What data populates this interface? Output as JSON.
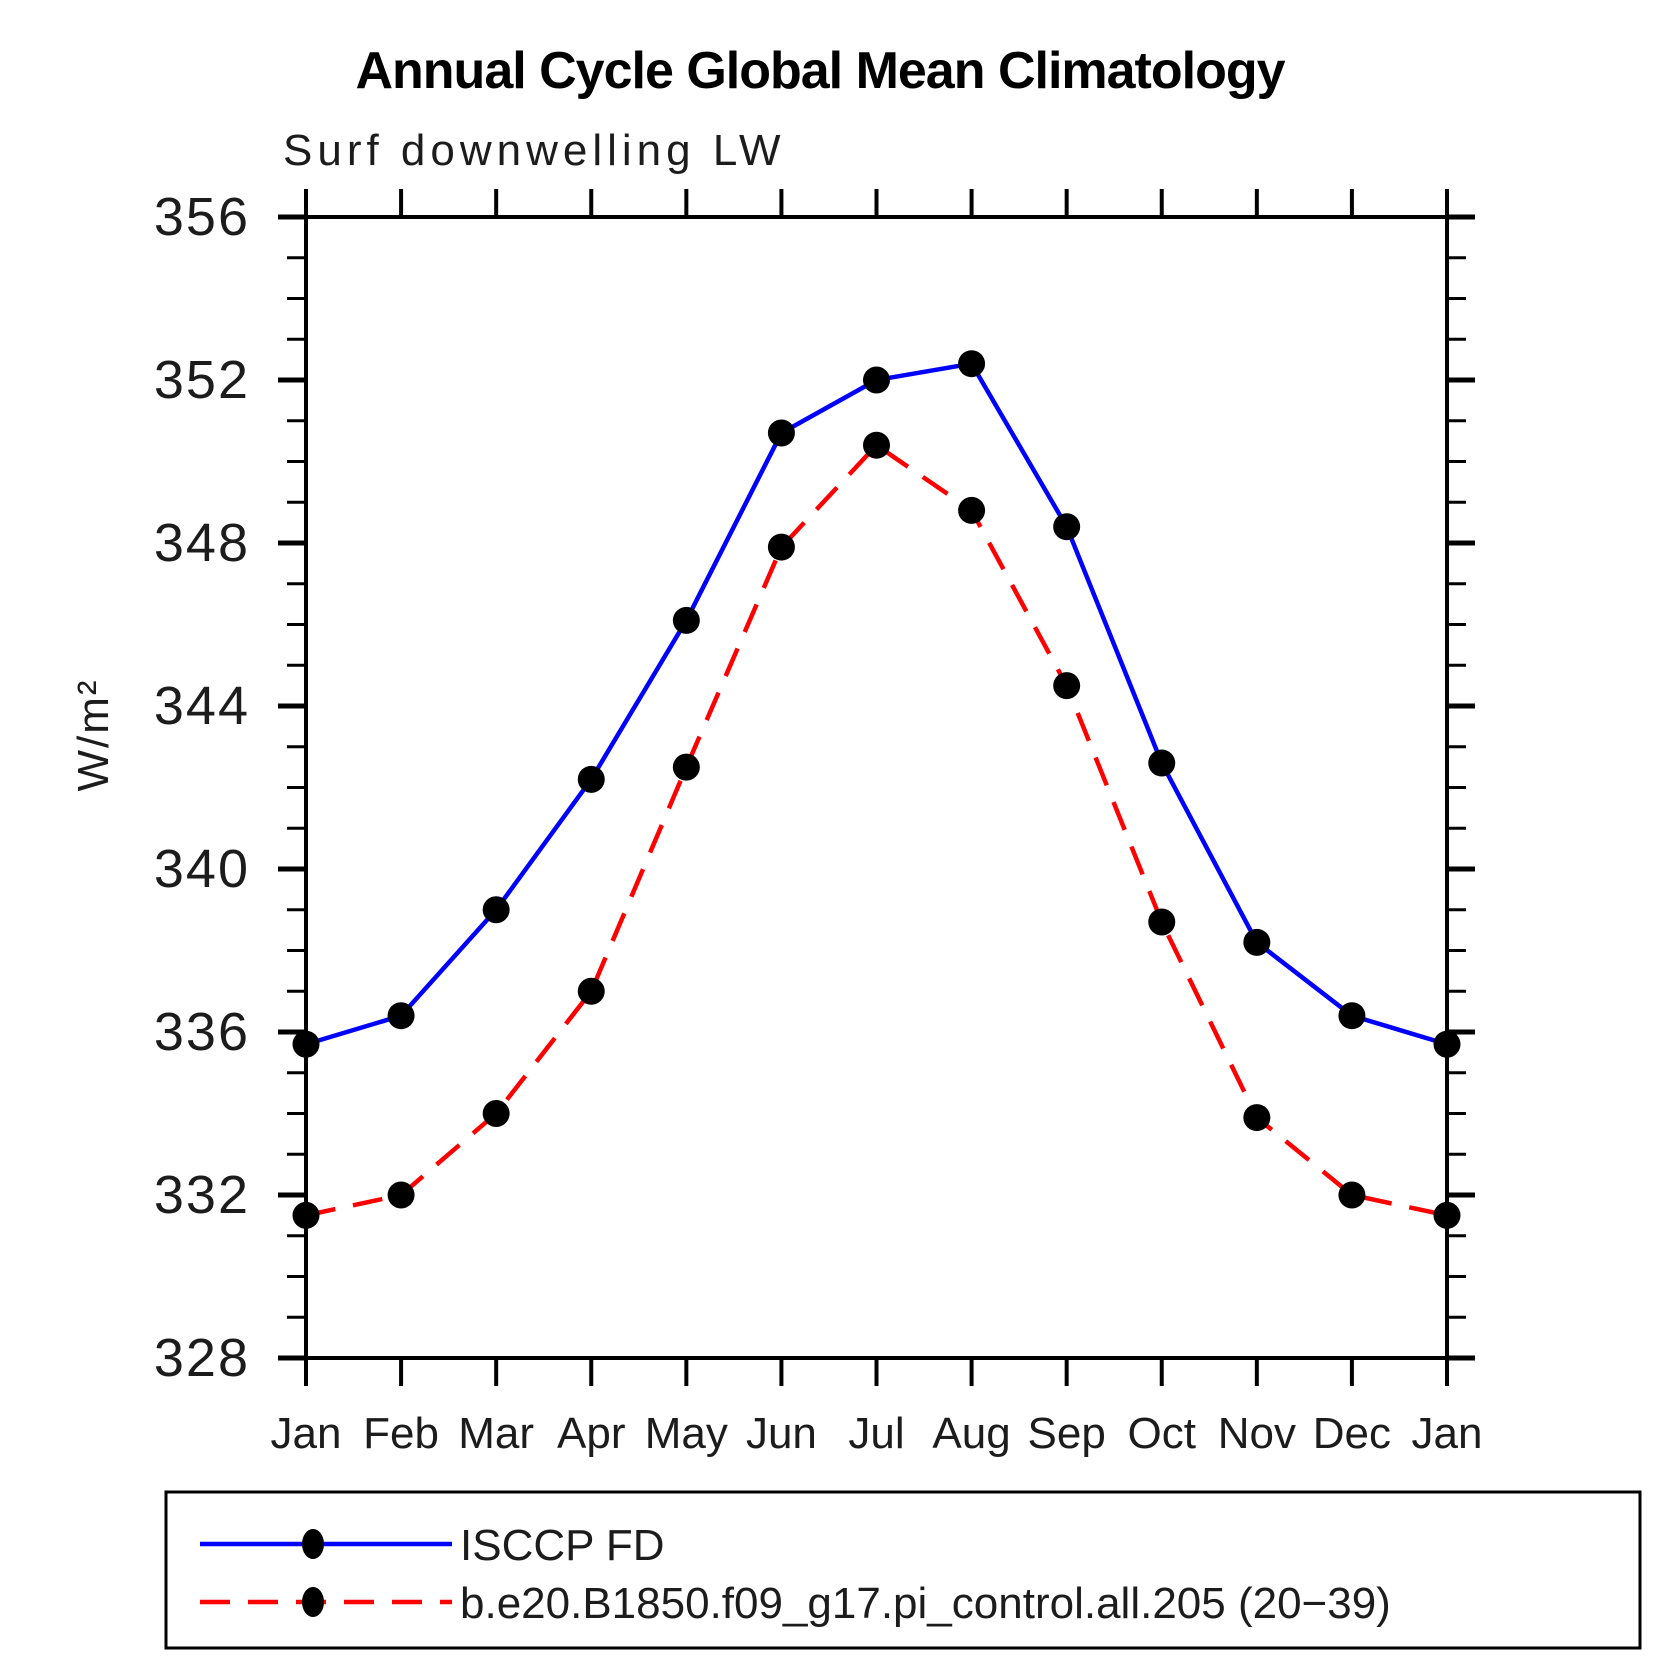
{
  "title": "Annual Cycle Global Mean Climatology",
  "subtitle": "Surf downwelling LW",
  "ylabel": "W/m²",
  "legend": {
    "entries": [
      {
        "label": "ISCCP FD",
        "color": "#0000ff",
        "line": "solid",
        "marker_color": "#000000"
      },
      {
        "label": "b.e20.B1850.f09_g17.pi_control.all.205 (20−39)",
        "color": "#ff0000",
        "line": "dashed",
        "marker_color": "#000000"
      }
    ]
  },
  "chart_data": {
    "type": "line",
    "title": "Annual Cycle Global Mean Climatology",
    "subtitle": "Surf downwelling LW",
    "xlabel": "",
    "ylabel": "W/m²",
    "x_categories": [
      "Jan",
      "Feb",
      "Mar",
      "Apr",
      "May",
      "Jun",
      "Jul",
      "Aug",
      "Sep",
      "Oct",
      "Nov",
      "Dec",
      "Jan"
    ],
    "ylim": [
      328,
      356
    ],
    "y_major_ticks": [
      328,
      332,
      336,
      340,
      344,
      348,
      352,
      356
    ],
    "y_minor_step": 1,
    "grid": false,
    "legend_position": "bottom-left-box",
    "series": [
      {
        "name": "ISCCP FD",
        "color": "#0000ff",
        "line": "solid",
        "marker": "circle",
        "marker_color": "#000000",
        "values": [
          335.7,
          336.4,
          339.0,
          342.2,
          346.1,
          350.7,
          352.0,
          352.4,
          348.4,
          342.6,
          338.2,
          336.4,
          335.7
        ]
      },
      {
        "name": "b.e20.B1850.f09_g17.pi_control.all.205 (20−39)",
        "color": "#ff0000",
        "line": "dashed",
        "marker": "circle",
        "marker_color": "#000000",
        "values": [
          331.5,
          332.0,
          334.0,
          337.0,
          342.5,
          347.9,
          350.4,
          348.8,
          344.5,
          338.7,
          333.9,
          332.0,
          331.5
        ]
      }
    ]
  }
}
